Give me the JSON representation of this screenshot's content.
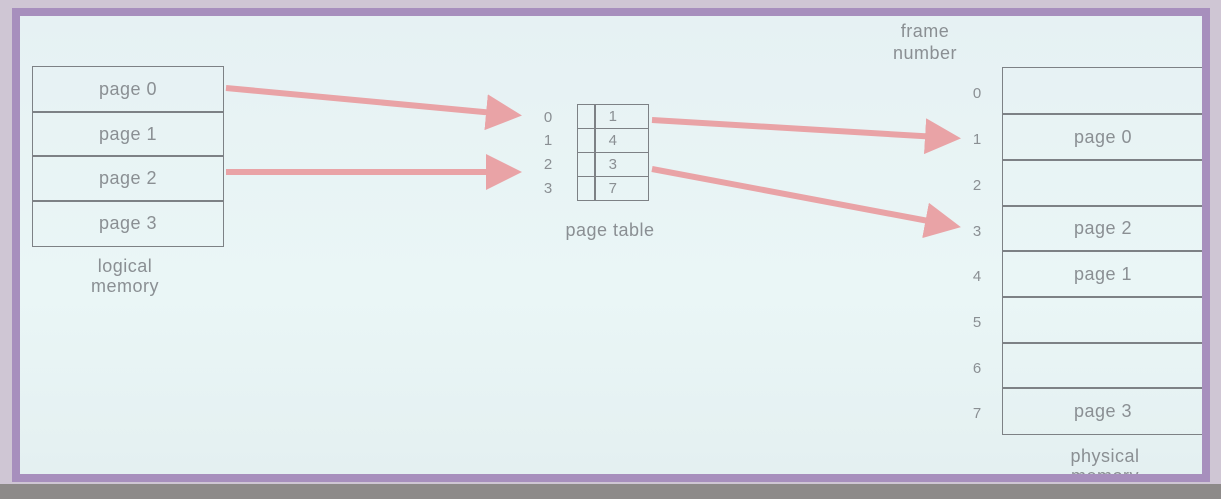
{
  "logical_memory": {
    "label": "logical\nmemory",
    "pages": [
      "page 0",
      "page 1",
      "page 2",
      "page 3"
    ]
  },
  "page_table": {
    "label": "page table",
    "indices": [
      "0",
      "1",
      "2",
      "3"
    ],
    "entries": [
      "1",
      "4",
      "3",
      "7"
    ]
  },
  "physical_memory": {
    "label": "physical\nmemory",
    "frame_label": "frame\nnumber",
    "frame_numbers": [
      "0",
      "1",
      "2",
      "3",
      "4",
      "5",
      "6",
      "7"
    ],
    "frames": [
      "",
      "page 0",
      "",
      "page 2",
      "page 1",
      "",
      "",
      "page 3"
    ]
  },
  "arrows": [
    {
      "from": "logical page 0",
      "to": "page table index 0"
    },
    {
      "from": "logical page 2",
      "to": "page table index 2"
    },
    {
      "from": "page table entry 0",
      "to": "frame 1"
    },
    {
      "from": "page table entry 2",
      "to": "frame 3"
    }
  ],
  "colors": {
    "arrow": "#e9a3a6",
    "frame_border": "#a78fbd",
    "text": "#8a8f93"
  }
}
